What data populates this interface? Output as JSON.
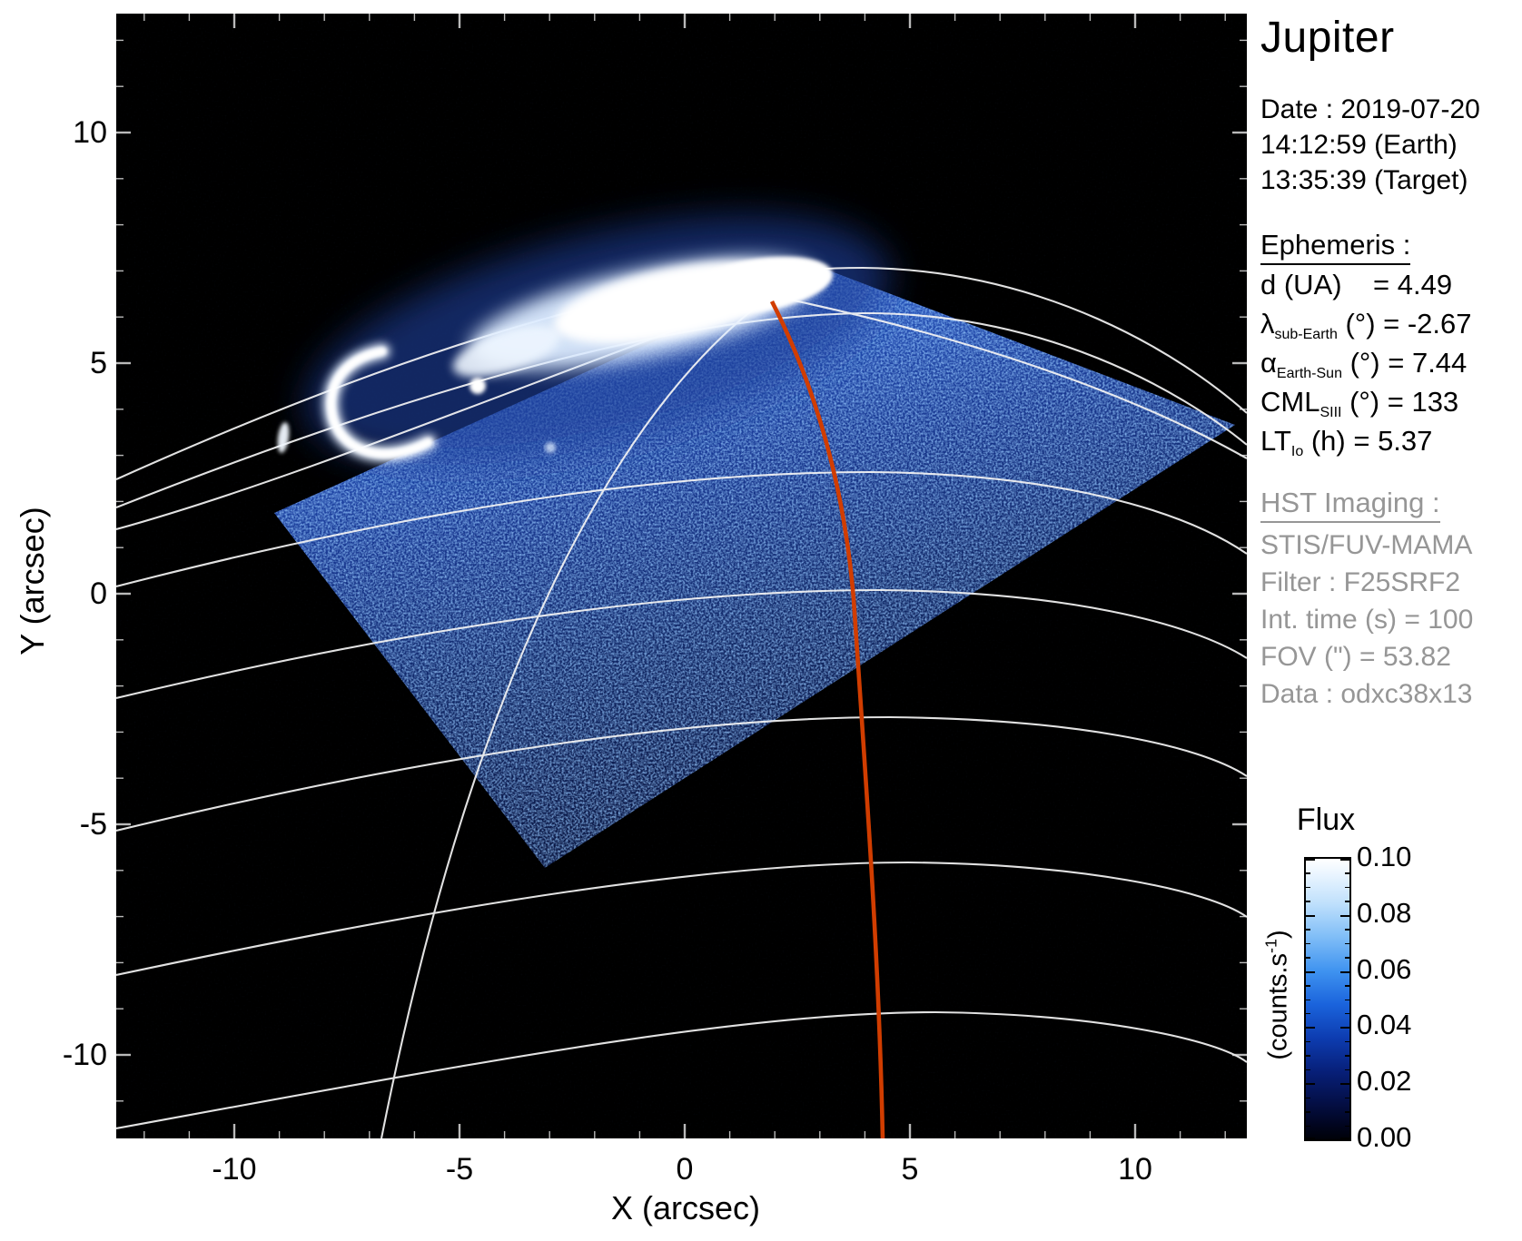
{
  "title": "Jupiter",
  "observation": {
    "date": "Date : 2019-07-20",
    "time_earth": "14:12:59 (Earth)",
    "time_target": "13:35:39 (Target)"
  },
  "ephemeris": {
    "heading": "Ephemeris :",
    "items": [
      {
        "pre": "d (UA)",
        "sub": "",
        "post": "    = 4.49"
      },
      {
        "pre": "λ",
        "sub": "sub-Earth",
        "post": " (°) = -2.67"
      },
      {
        "pre": "α",
        "sub": "Earth-Sun",
        "post": " (°) = 7.44"
      },
      {
        "pre": "CML",
        "sub": "SIII",
        "post": " (°) = 133"
      },
      {
        "pre": "LT",
        "sub": "Io",
        "post": " (h) = 5.37"
      }
    ]
  },
  "hst": {
    "heading": "HST Imaging :",
    "lines": [
      "STIS/FUV-MAMA",
      "Filter : F25SRF2",
      "Int. time (s) = 100",
      "FOV (\") = 53.82",
      "Data : odxc38x13"
    ]
  },
  "axes": {
    "x_label": "X (arcsec)",
    "y_label": "Y (arcsec)",
    "x_ticks": [
      "-10",
      "-5",
      "0",
      "5",
      "10"
    ],
    "y_ticks": [
      "10",
      "5",
      "0",
      "-5",
      "-10"
    ]
  },
  "colorbar": {
    "title": "Flux",
    "unit_pre": "(counts.s",
    "unit_sup": "-1",
    "unit_post": ")",
    "ticks": [
      "0.10",
      "0.08",
      "0.06",
      "0.04",
      "0.02",
      "0.00"
    ],
    "top_color": "#ffffff",
    "bottom_color": "#000108"
  },
  "overlay_colors": {
    "grid_white": "#f5f5f5",
    "cml_meridian_red": "#d13d00",
    "detector_blue": "#16348c",
    "aurora_white": "#ffffff"
  },
  "chart_data": {
    "type": "heatmap",
    "title": "Jupiter",
    "xlabel": "X (arcsec)",
    "ylabel": "Y (arcsec)",
    "xlim": [
      -12.6,
      12.5
    ],
    "ylim": [
      -11.8,
      12.6
    ],
    "x_ticks": [
      -10,
      -5,
      0,
      5,
      10
    ],
    "y_ticks": [
      10,
      5,
      0,
      -5,
      -10
    ],
    "grid": "white planetocentric latitude/longitude ellipse arcs overlaid; meridians converge toward pole near (2, 6.3)",
    "colorbar": {
      "label": "Flux",
      "unit": "counts.s-1",
      "min": 0.0,
      "max": 0.1,
      "tick_values": [
        0.1,
        0.08,
        0.06,
        0.04,
        0.02,
        0.0
      ],
      "colormap": "black to dark blue to blue to light blue to white",
      "position": "right"
    },
    "content": "HST STIS FUV image: tilted square detector footprint filled with faint blue photon noise; bright white northern auroral oval from (-1.5,4.8) to (3,6.3); crescent arc near (-7,4.3); small spots near (-4.5,4.9) and (-9.3,3.6); red CML meridian line from (2.0,6.2) curving down to (4.3,-11.8)",
    "ephemeris_values": {
      "d_UA": 4.49,
      "lambda_subEarth_deg": -2.67,
      "alpha_EarthSun_deg": 7.44,
      "CML_SIII_deg": 133,
      "LT_Io_h": 5.37
    },
    "imaging": {
      "instrument": "STIS/FUV-MAMA",
      "filter": "F25SRF2",
      "int_time_s": 100,
      "fov_arcsec": 53.82,
      "data_id": "odxc38x13"
    }
  }
}
